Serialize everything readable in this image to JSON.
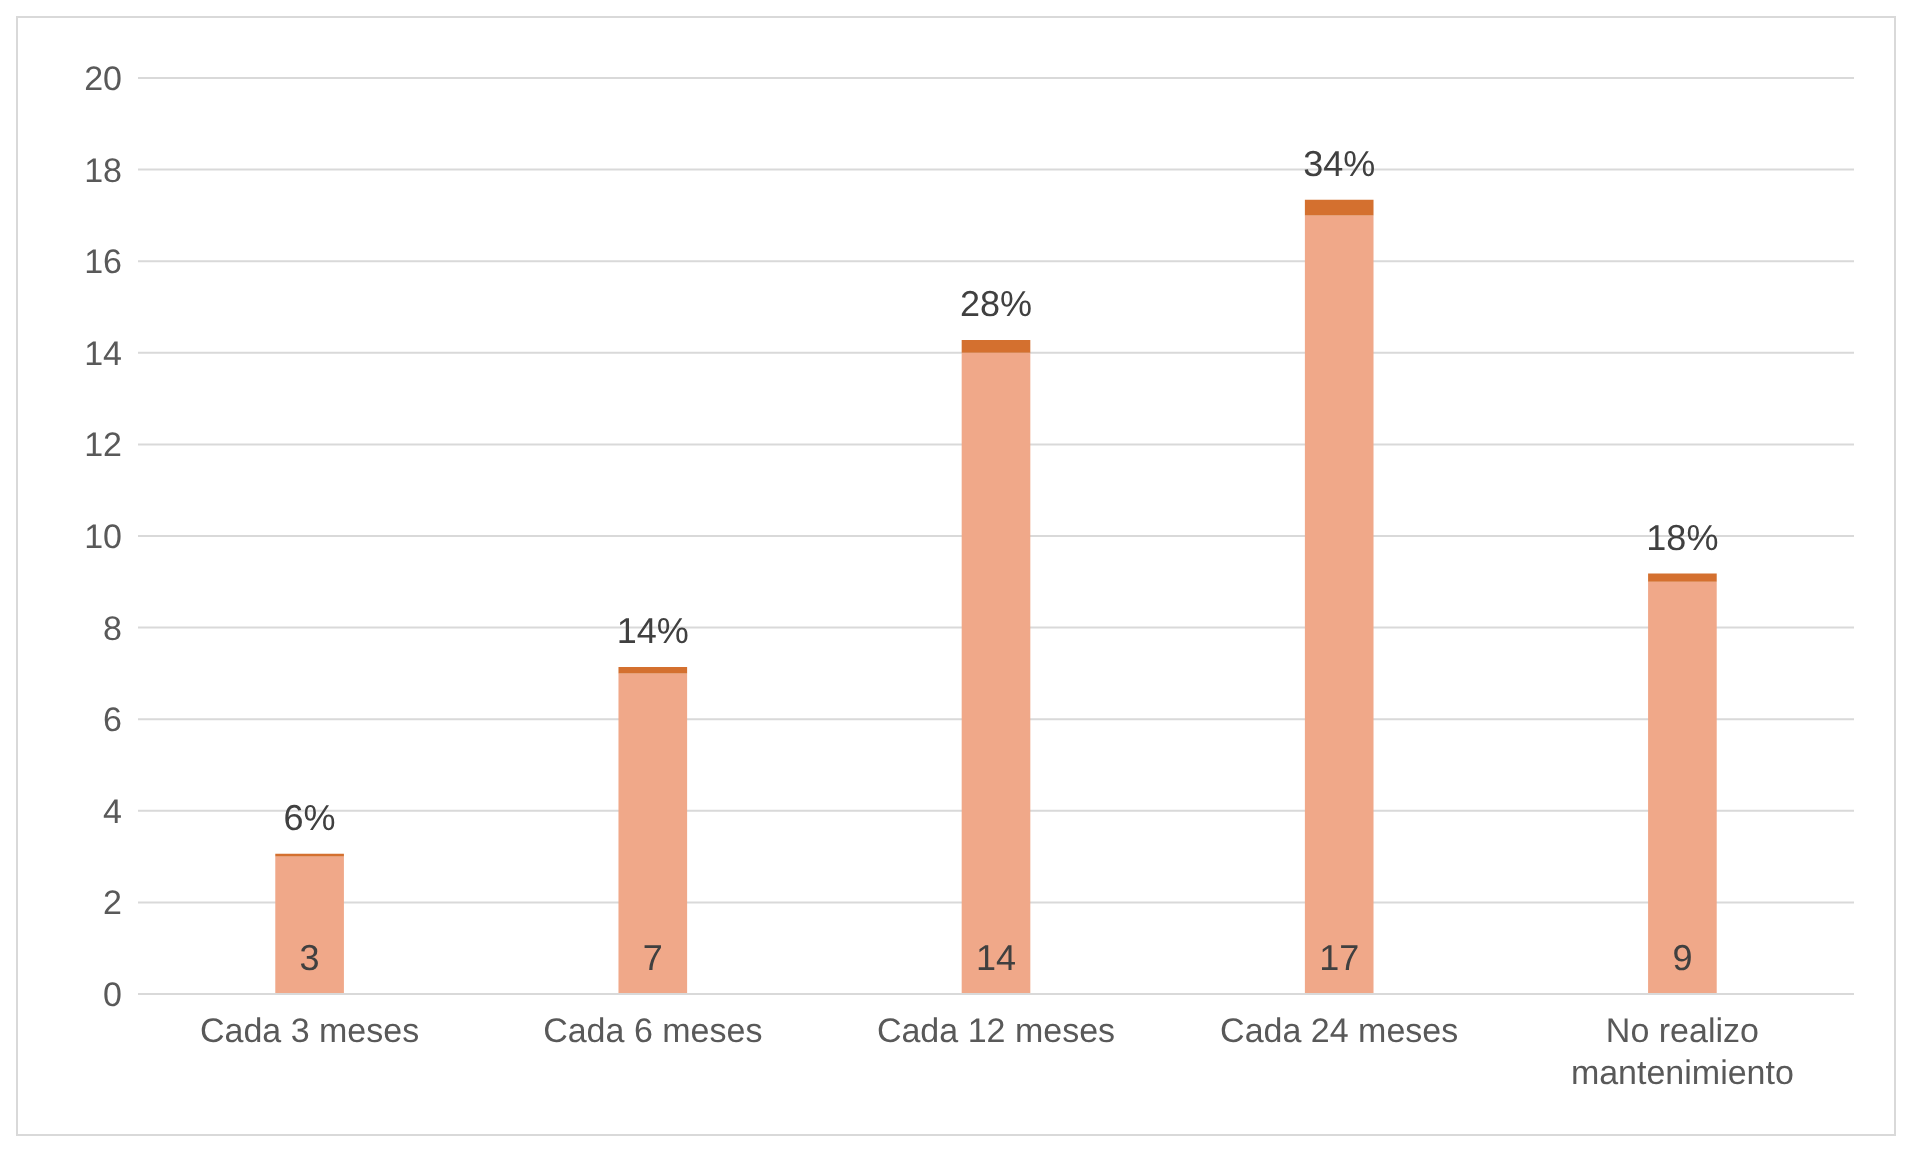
{
  "chart_data": {
    "type": "bar",
    "stacked": true,
    "categories": [
      "Cada 3 meses",
      "Cada 6 meses",
      "Cada 12 meses",
      "Cada 24 meses",
      "No realizo mantenimiento"
    ],
    "series": [
      {
        "color": "#f0a889",
        "values": [
          3,
          7,
          14,
          17,
          9
        ],
        "value_labels": [
          "3",
          "7",
          "14",
          "17",
          "9"
        ]
      },
      {
        "color": "#d4702f",
        "values": [
          0.06,
          0.14,
          0.28,
          0.34,
          0.18
        ],
        "value_labels": [
          "6%",
          "14%",
          "28%",
          "34%",
          "18%"
        ]
      }
    ],
    "ylim": [
      0,
      20
    ],
    "yticks": [
      0,
      2,
      4,
      6,
      8,
      10,
      12,
      14,
      16,
      18,
      20
    ],
    "grid": "y",
    "legend": false
  }
}
